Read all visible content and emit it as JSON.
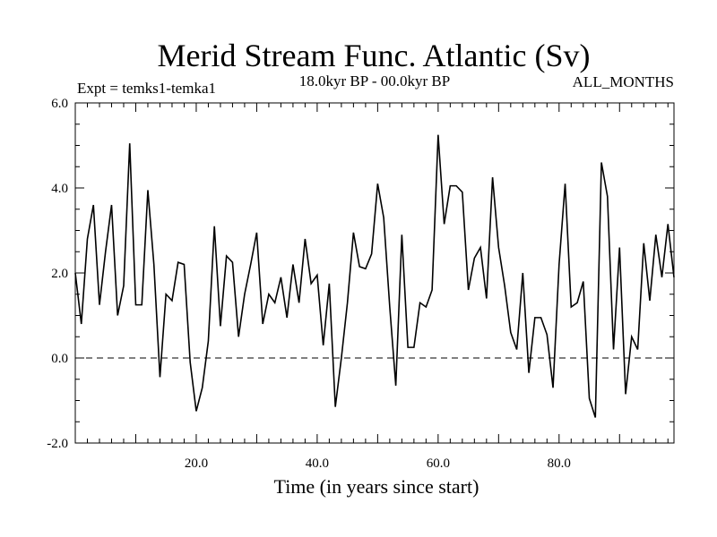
{
  "chart_data": {
    "type": "line",
    "title": "Merid Stream Func. Atlantic (Sv)",
    "subtitle_left": "Expt = temks1-temka1",
    "subtitle_center": "18.0kyr BP - 00.0kyr BP",
    "subtitle_right": "ALL_MONTHS",
    "xlabel": "Time (in years since start)",
    "ylabel": "",
    "xlim": [
      0,
      99
    ],
    "ylim": [
      -2.0,
      6.0
    ],
    "x_ticks": [
      20,
      40,
      60,
      80
    ],
    "x_tick_labels": [
      "20.0",
      "40.0",
      "60.0",
      "80.0"
    ],
    "y_ticks": [
      -2,
      0,
      2,
      4,
      6
    ],
    "y_tick_labels": [
      "-2.0",
      "0.0",
      "2.0",
      "4.0",
      "6.0"
    ],
    "zero_line": 0,
    "x": [
      0,
      1,
      2,
      3,
      4,
      5,
      6,
      7,
      8,
      9,
      10,
      11,
      12,
      13,
      14,
      15,
      16,
      17,
      18,
      19,
      20,
      21,
      22,
      23,
      24,
      25,
      26,
      27,
      28,
      29,
      30,
      31,
      32,
      33,
      34,
      35,
      36,
      37,
      38,
      39,
      40,
      41,
      42,
      43,
      44,
      45,
      46,
      47,
      48,
      49,
      50,
      51,
      52,
      53,
      54,
      55,
      56,
      57,
      58,
      59,
      60,
      61,
      62,
      63,
      64,
      65,
      66,
      67,
      68,
      69,
      70,
      71,
      72,
      73,
      74,
      75,
      76,
      77,
      78,
      79,
      80,
      81,
      82,
      83,
      84,
      85,
      86,
      87,
      88,
      89,
      90,
      91,
      92,
      93,
      94,
      95,
      96,
      97,
      98,
      99
    ],
    "values": [
      2.0,
      0.8,
      2.8,
      3.6,
      1.25,
      2.5,
      3.6,
      1.0,
      1.7,
      5.05,
      1.25,
      1.25,
      3.95,
      2.2,
      -0.45,
      1.5,
      1.35,
      2.25,
      2.2,
      -0.1,
      -1.25,
      -0.7,
      0.4,
      3.1,
      0.75,
      2.4,
      2.25,
      0.5,
      1.5,
      2.2,
      2.95,
      0.8,
      1.5,
      1.3,
      1.9,
      0.95,
      2.2,
      1.3,
      2.8,
      1.75,
      1.95,
      0.3,
      1.75,
      -1.15,
      0.0,
      1.3,
      2.95,
      2.15,
      2.1,
      2.45,
      4.1,
      3.3,
      1.2,
      -0.65,
      2.9,
      0.25,
      0.25,
      1.3,
      1.2,
      1.6,
      5.25,
      3.15,
      4.05,
      4.05,
      3.9,
      1.6,
      2.35,
      2.6,
      1.4,
      4.25,
      2.6,
      1.7,
      0.6,
      0.2,
      2.0,
      -0.35,
      0.95,
      0.95,
      0.55,
      -0.7,
      2.2,
      4.1,
      1.2,
      1.3,
      1.8,
      -0.95,
      -1.4,
      4.6,
      3.8,
      0.2,
      2.6,
      -0.85,
      0.5,
      0.2,
      2.7,
      1.35,
      2.9,
      1.9,
      3.15,
      1.9
    ]
  }
}
